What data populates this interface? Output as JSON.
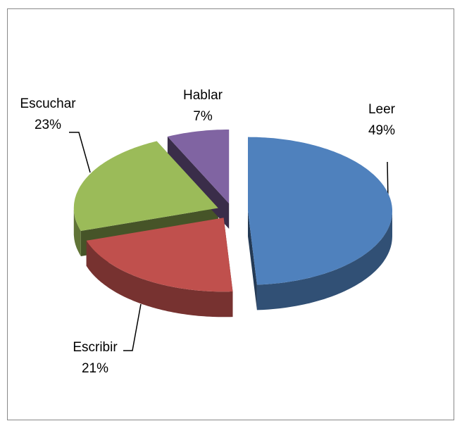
{
  "chart_data": {
    "type": "pie",
    "categories": [
      "Leer",
      "Escribir",
      "Escuchar",
      "Hablar"
    ],
    "values": [
      49,
      21,
      23,
      7
    ],
    "value_labels": [
      "49%",
      "21%",
      "23%",
      "7%"
    ],
    "colors": [
      "#4f81bd",
      "#c0504d",
      "#9bbb59",
      "#8064a2"
    ]
  }
}
